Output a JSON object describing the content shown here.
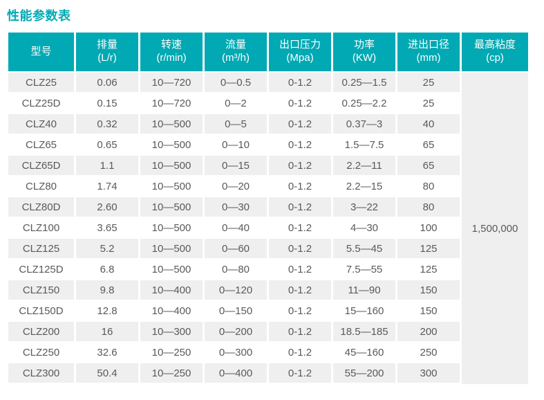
{
  "page": {
    "title": "性能参数表"
  },
  "colors": {
    "accent": "#00A9B3",
    "row_alt": "#EFEFEF",
    "text": "#58595B",
    "header_text": "#FFFFFF"
  },
  "table": {
    "columns": [
      {
        "label": "型号",
        "unit": ""
      },
      {
        "label": "排量",
        "unit": "(L/r)"
      },
      {
        "label": "转速",
        "unit": "(r/min)"
      },
      {
        "label": "流量",
        "unit": "(m³/h)"
      },
      {
        "label": "出口压力",
        "unit": "(Mpa)"
      },
      {
        "label": "功率",
        "unit": "(KW)"
      },
      {
        "label": "进出口径",
        "unit": "(mm)"
      },
      {
        "label": "最高粘度",
        "unit": "(cp)"
      }
    ],
    "rows": [
      [
        "CLZ25",
        "0.06",
        "10—720",
        "0—0.5",
        "0-1.2",
        "0.25—1.5",
        "25"
      ],
      [
        "CLZ25D",
        "0.15",
        "10—720",
        "0—2",
        "0-1.2",
        "0.25—2.2",
        "25"
      ],
      [
        "CLZ40",
        "0.32",
        "10—500",
        "0—5",
        "0-1.2",
        "0.37—3",
        "40"
      ],
      [
        "CLZ65",
        "0.65",
        "10—500",
        "0—10",
        "0-1.2",
        "1.5—7.5",
        "65"
      ],
      [
        "CLZ65D",
        "1.1",
        "10—500",
        "0—15",
        "0-1.2",
        "2.2—11",
        "65"
      ],
      [
        "CLZ80",
        "1.74",
        "10—500",
        "0—20",
        "0-1.2",
        "2.2—15",
        "80"
      ],
      [
        "CLZ80D",
        "2.60",
        "10—500",
        "0—30",
        "0-1.2",
        "3—22",
        "80"
      ],
      [
        "CLZ100",
        "3.65",
        "10—500",
        "0—40",
        "0-1.2",
        "4—30",
        "100"
      ],
      [
        "CLZ125",
        "5.2",
        "10—500",
        "0—60",
        "0-1.2",
        "5.5—45",
        "125"
      ],
      [
        "CLZ125D",
        "6.8",
        "10—500",
        "0—80",
        "0-1.2",
        "7.5—55",
        "125"
      ],
      [
        "CLZ150",
        "9.8",
        "10—400",
        "0—120",
        "0-1.2",
        "11—90",
        "150"
      ],
      [
        "CLZ150D",
        "12.8",
        "10—400",
        "0—150",
        "0-1.2",
        "15—160",
        "150"
      ],
      [
        "CLZ200",
        "16",
        "10—300",
        "0—200",
        "0-1.2",
        "18.5—185",
        "200"
      ],
      [
        "CLZ250",
        "32.6",
        "10—250",
        "0—300",
        "0-1.2",
        "45—160",
        "250"
      ],
      [
        "CLZ300",
        "50.4",
        "10—250",
        "0—400",
        "0-1.2",
        "55—200",
        "300"
      ]
    ],
    "merged_max_viscosity": "1,500,000"
  }
}
